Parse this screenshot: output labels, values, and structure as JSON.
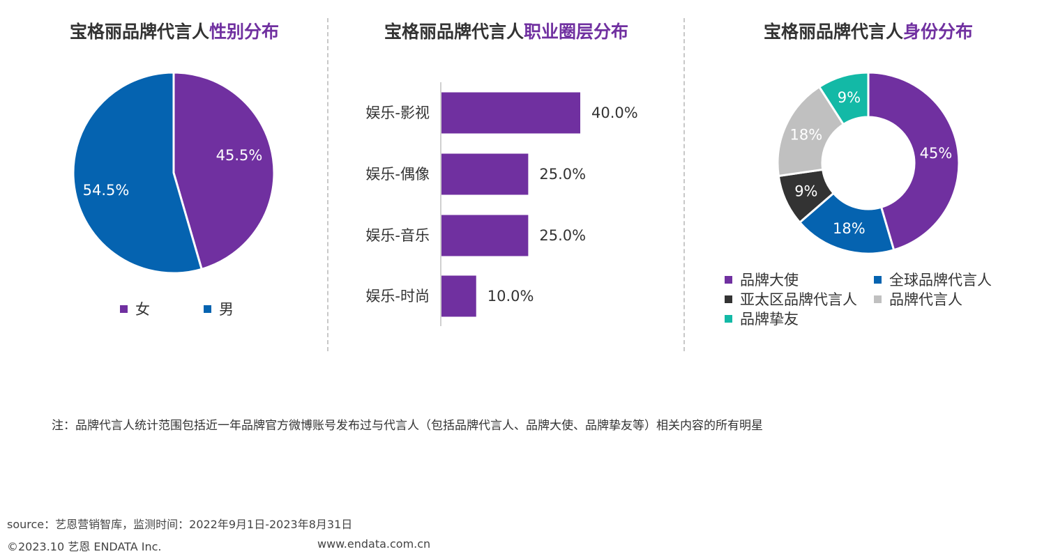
{
  "colors": {
    "purple": "#7030a0",
    "blue": "#0563b0",
    "dark": "#333333",
    "gray": "#c0c0c0",
    "teal": "#13b9a6"
  },
  "panels": {
    "gender": {
      "title_prefix": "宝格丽品牌代言人",
      "title_highlight": "性别分布"
    },
    "career": {
      "title_prefix": "宝格丽品牌代言人",
      "title_highlight": "职业圈层分布"
    },
    "identity": {
      "title_prefix": "宝格丽品牌代言人",
      "title_highlight": "身份分布"
    }
  },
  "chart_data": [
    {
      "type": "pie",
      "labels": [
        "女",
        "男"
      ],
      "values": [
        45.5,
        54.5
      ],
      "value_labels": [
        "45.5%",
        "54.5%"
      ],
      "colors": [
        "#7030a0",
        "#0563b0"
      ],
      "legend": "bottom"
    },
    {
      "type": "bar",
      "orientation": "horizontal",
      "categories": [
        "娱乐-影视",
        "娱乐-偶像",
        "娱乐-音乐",
        "娱乐-时尚"
      ],
      "values": [
        40.0,
        25.0,
        25.0,
        10.0
      ],
      "value_labels": [
        "40.0%",
        "25.0%",
        "25.0%",
        "10.0%"
      ],
      "color": "#7030a0",
      "xlim": [
        0,
        40
      ]
    },
    {
      "type": "pie",
      "subtype": "donut",
      "labels": [
        "品牌大使",
        "全球品牌代言人",
        "亚太区品牌代言人",
        "品牌代言人",
        "品牌挚友"
      ],
      "values": [
        45,
        18,
        9,
        18,
        9
      ],
      "value_labels": [
        "45%",
        "18%",
        "9%",
        "18%",
        "9%"
      ],
      "colors": [
        "#7030a0",
        "#0563b0",
        "#333333",
        "#c0c0c0",
        "#13b9a6"
      ],
      "legend": "bottom"
    }
  ],
  "footer": {
    "note": "注：品牌代言人统计范围包括近一年品牌官方微博账号发布过与代言人（包括品牌代言人、品牌大使、品牌挚友等）相关内容的所有明星",
    "source": "source：艺恩营销智库，监测时间：2022年9月1日-2023年8月31日",
    "copyright": "©2023.10  艺恩  ENDATA Inc.",
    "website": "www.endata.com.cn"
  }
}
